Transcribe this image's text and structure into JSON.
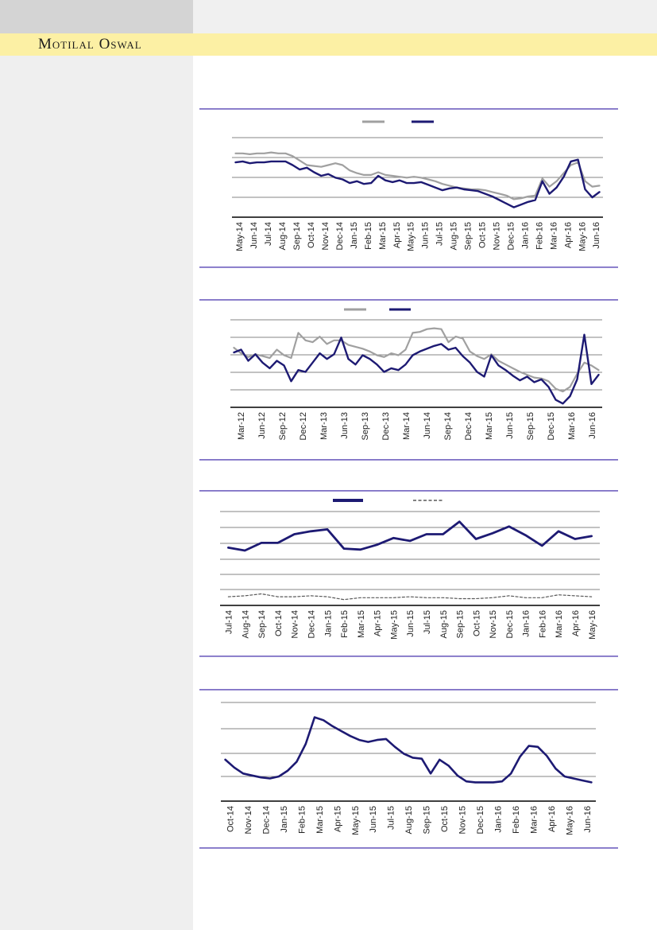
{
  "header": {
    "brand": "Motilal Oswal"
  },
  "colors": {
    "navy": "#1d1a73",
    "gray": "#a0a0a0",
    "dashed_gray": "#595959",
    "separator": "#7f71c6",
    "band_yellow": "#fcf0a4",
    "sidebar_gray": "#efefef",
    "header_block_gray": "#d4d4d4",
    "gridline": "#858585",
    "axis": "#000000",
    "label_text": "#222222"
  },
  "chart_data": [
    {
      "id": "chart-1",
      "type": "line",
      "title": "",
      "x_tick_labels": [
        "May-14",
        "Jun-14",
        "Jul-14",
        "Aug-14",
        "Sep-14",
        "Oct-14",
        "Nov-14",
        "Dec-14",
        "Jan-15",
        "Feb-15",
        "Mar-15",
        "Apr-15",
        "May-15",
        "Jun-15",
        "Jul-15",
        "Aug-15",
        "Sep-15",
        "Oct-15",
        "Nov-15",
        "Dec-15",
        "Jan-16",
        "Feb-16",
        "Mar-16",
        "Apr-16",
        "May-16",
        "Jun-16"
      ],
      "y_axis": {
        "tick_labels_visible": false,
        "scale_note": "values are percent of plot height above x-axis (no y labels printed)"
      },
      "legend": [
        {
          "swatch": "solid-gray-line",
          "label": ""
        },
        {
          "swatch": "solid-navy-line",
          "label": ""
        }
      ],
      "series": [
        {
          "name": "gray-line",
          "values": [
            71,
            71,
            70,
            71,
            71,
            72,
            71,
            71,
            68,
            63,
            58,
            57,
            56,
            58,
            60,
            58,
            52,
            49,
            47,
            47,
            50,
            47,
            46,
            45,
            44,
            45,
            44,
            42,
            40,
            37,
            35,
            33,
            32,
            31,
            31,
            30,
            28,
            26,
            24,
            20,
            21,
            23,
            24,
            43,
            34,
            40,
            49,
            58,
            61,
            40,
            34,
            35
          ]
        },
        {
          "name": "navy-line",
          "values": [
            61,
            62,
            60,
            61,
            61,
            62,
            62,
            62,
            58,
            53,
            55,
            50,
            46,
            48,
            44,
            42,
            38,
            40,
            37,
            38,
            46,
            41,
            39,
            41,
            38,
            38,
            39,
            36,
            33,
            30,
            32,
            33,
            31,
            30,
            29,
            26,
            23,
            19,
            15,
            11,
            14,
            17,
            19,
            40,
            26,
            33,
            45,
            62,
            64,
            31,
            22,
            28
          ]
        }
      ]
    },
    {
      "id": "chart-2",
      "type": "line",
      "title": "",
      "x_tick_labels": [
        "Mar-12",
        "Jun-12",
        "Sep-12",
        "Dec-12",
        "Mar-13",
        "Jun-13",
        "Sep-13",
        "Dec-13",
        "Mar-14",
        "Jun-14",
        "Sep-14",
        "Dec-14",
        "Mar-15",
        "Jun-15",
        "Sep-15",
        "Dec-15",
        "Mar-16",
        "Jun-16"
      ],
      "y_axis": {
        "tick_labels_visible": false,
        "scale_note": "values are percent of plot height above x-axis (no y labels printed)"
      },
      "legend": [
        {
          "swatch": "solid-gray-line",
          "label": ""
        },
        {
          "swatch": "solid-navy-line",
          "label": ""
        }
      ],
      "series": [
        {
          "name": "gray-line",
          "values": [
            64,
            58,
            54,
            57,
            55,
            53,
            62,
            56,
            53,
            80,
            72,
            70,
            76,
            68,
            72,
            72,
            67,
            65,
            63,
            60,
            56,
            54,
            58,
            56,
            62,
            80,
            81,
            84,
            85,
            84,
            70,
            76,
            74,
            60,
            55,
            52,
            57,
            50,
            46,
            42,
            38,
            35,
            32,
            31,
            28,
            20,
            17,
            22,
            36,
            48,
            45,
            40
          ]
        },
        {
          "name": "navy-line",
          "values": [
            59,
            62,
            50,
            57,
            48,
            42,
            50,
            45,
            28,
            40,
            38,
            48,
            58,
            52,
            57,
            75,
            52,
            46,
            56,
            52,
            46,
            38,
            42,
            40,
            46,
            56,
            60,
            63,
            66,
            68,
            62,
            64,
            55,
            48,
            38,
            33,
            56,
            45,
            40,
            34,
            29,
            33,
            27,
            30,
            22,
            8,
            4,
            12,
            30,
            78,
            25,
            35
          ]
        }
      ]
    },
    {
      "id": "chart-3",
      "type": "line",
      "title": "",
      "x_tick_labels": [
        "Jul-14",
        "Aug-14",
        "Sep-14",
        "Oct-14",
        "Nov-14",
        "Dec-14",
        "Jan-15",
        "Feb-15",
        "Mar-15",
        "Apr-15",
        "May-15",
        "Jun-15",
        "Jul-15",
        "Aug-15",
        "Sep-15",
        "Oct-15",
        "Nov-15",
        "Dec-15",
        "Jan-16",
        "Feb-16",
        "Mar-16",
        "Apr-16",
        "May-16"
      ],
      "y_axis": {
        "tick_labels_visible": false,
        "scale_note": "values are percent of plot height above x-axis (no y labels printed)"
      },
      "legend": [
        {
          "swatch": "solid-navy-line",
          "label": ""
        },
        {
          "swatch": "dashed-gray-line",
          "label": ""
        }
      ],
      "series": [
        {
          "name": "navy-line",
          "values": [
            60,
            57,
            65,
            65,
            74,
            77,
            79,
            59,
            58,
            63,
            70,
            67,
            74,
            74,
            87,
            69,
            75,
            82,
            73,
            62,
            77,
            69,
            72
          ]
        },
        {
          "name": "dashed-line",
          "values": [
            9,
            10,
            12,
            9,
            9,
            10,
            9,
            6,
            8,
            8,
            8,
            9,
            8,
            8,
            7,
            7,
            8,
            10,
            8,
            8,
            11,
            10,
            9
          ]
        }
      ]
    },
    {
      "id": "chart-4",
      "type": "line",
      "title": "",
      "x_tick_labels": [
        "Oct-14",
        "Nov-14",
        "Dec-14",
        "Jan-15",
        "Feb-15",
        "Mar-15",
        "Apr-15",
        "May-15",
        "Jun-15",
        "Jul-15",
        "Aug-15",
        "Sep-15",
        "Oct-15",
        "Nov-15",
        "Dec-15",
        "Jan-16",
        "Feb-16",
        "Mar-16",
        "Apr-16",
        "May-16",
        "Jun-16"
      ],
      "y_axis": {
        "tick_labels_visible": false,
        "scale_note": "values are percent of plot height above x-axis (no y labels printed)"
      },
      "legend": [],
      "series": [
        {
          "name": "navy-line",
          "values": [
            42,
            34,
            28,
            26,
            24,
            23,
            25,
            31,
            40,
            58,
            85,
            82,
            76,
            71,
            66,
            62,
            60,
            62,
            63,
            55,
            48,
            44,
            43,
            28,
            42,
            36,
            26,
            20,
            19,
            19,
            19,
            20,
            28,
            45,
            56,
            55,
            46,
            33,
            25,
            23,
            21,
            19
          ]
        }
      ]
    }
  ]
}
